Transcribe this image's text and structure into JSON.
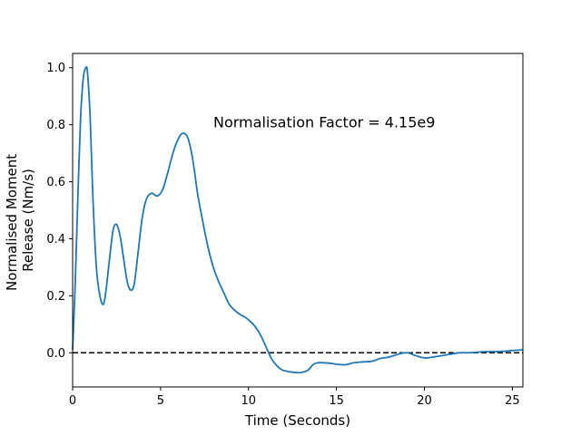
{
  "chart_data": {
    "type": "line",
    "title": "",
    "xlabel": "Time (Seconds)",
    "ylabel_lines": [
      "Normalised Moment",
      "Release (Nm/s)"
    ],
    "xlim": [
      0,
      25.6
    ],
    "ylim": [
      -0.12,
      1.05
    ],
    "x_ticks": [
      0,
      5,
      10,
      15,
      20,
      25
    ],
    "y_ticks": [
      0.0,
      0.2,
      0.4,
      0.6,
      0.8,
      1.0
    ],
    "y_tick_labels": [
      "0.0",
      "0.2",
      "0.4",
      "0.6",
      "0.8",
      "1.0"
    ],
    "grid": false,
    "annotation": {
      "text": "Normalisation Factor = 4.15e9",
      "x": 8.0,
      "y": 0.81
    },
    "reference_line": {
      "y": 0.0,
      "style": "dashed",
      "color": "#000000"
    },
    "series": [
      {
        "color": "#1f77b4",
        "x": [
          0,
          0.15,
          0.3,
          0.45,
          0.6,
          0.75,
          0.85,
          1.0,
          1.15,
          1.35,
          1.55,
          1.75,
          1.9,
          2.1,
          2.3,
          2.5,
          2.7,
          2.9,
          3.1,
          3.3,
          3.5,
          3.7,
          3.95,
          4.2,
          4.5,
          4.8,
          5.1,
          5.4,
          5.7,
          6.0,
          6.25,
          6.5,
          6.7,
          6.9,
          7.1,
          7.4,
          7.7,
          8.0,
          8.3,
          8.6,
          8.9,
          9.2,
          9.5,
          9.8,
          10.1,
          10.4,
          10.7,
          11.0,
          11.3,
          11.6,
          11.9,
          12.2,
          12.5,
          12.8,
          13.1,
          13.4,
          13.7,
          14.0,
          14.5,
          15.0,
          15.5,
          16.0,
          16.5,
          17.0,
          17.5,
          18.0,
          18.5,
          19.0,
          19.5,
          20.0,
          20.5,
          21.0,
          21.5,
          22.0,
          22.5,
          23.0,
          23.5,
          24.0,
          24.5,
          25.0,
          25.6
        ],
        "y": [
          0.01,
          0.25,
          0.55,
          0.82,
          0.96,
          1.0,
          0.98,
          0.82,
          0.55,
          0.3,
          0.2,
          0.17,
          0.22,
          0.33,
          0.43,
          0.45,
          0.41,
          0.33,
          0.25,
          0.22,
          0.24,
          0.34,
          0.47,
          0.54,
          0.56,
          0.55,
          0.57,
          0.63,
          0.7,
          0.75,
          0.77,
          0.76,
          0.72,
          0.65,
          0.56,
          0.46,
          0.37,
          0.3,
          0.25,
          0.21,
          0.17,
          0.15,
          0.135,
          0.125,
          0.11,
          0.09,
          0.06,
          0.02,
          -0.02,
          -0.045,
          -0.06,
          -0.065,
          -0.068,
          -0.07,
          -0.068,
          -0.06,
          -0.04,
          -0.035,
          -0.036,
          -0.04,
          -0.042,
          -0.035,
          -0.032,
          -0.03,
          -0.02,
          -0.015,
          -0.005,
          0.0,
          -0.01,
          -0.018,
          -0.015,
          -0.01,
          -0.005,
          0.0,
          0.0,
          0.002,
          0.004,
          0.004,
          0.005,
          0.008,
          0.01
        ]
      }
    ]
  }
}
